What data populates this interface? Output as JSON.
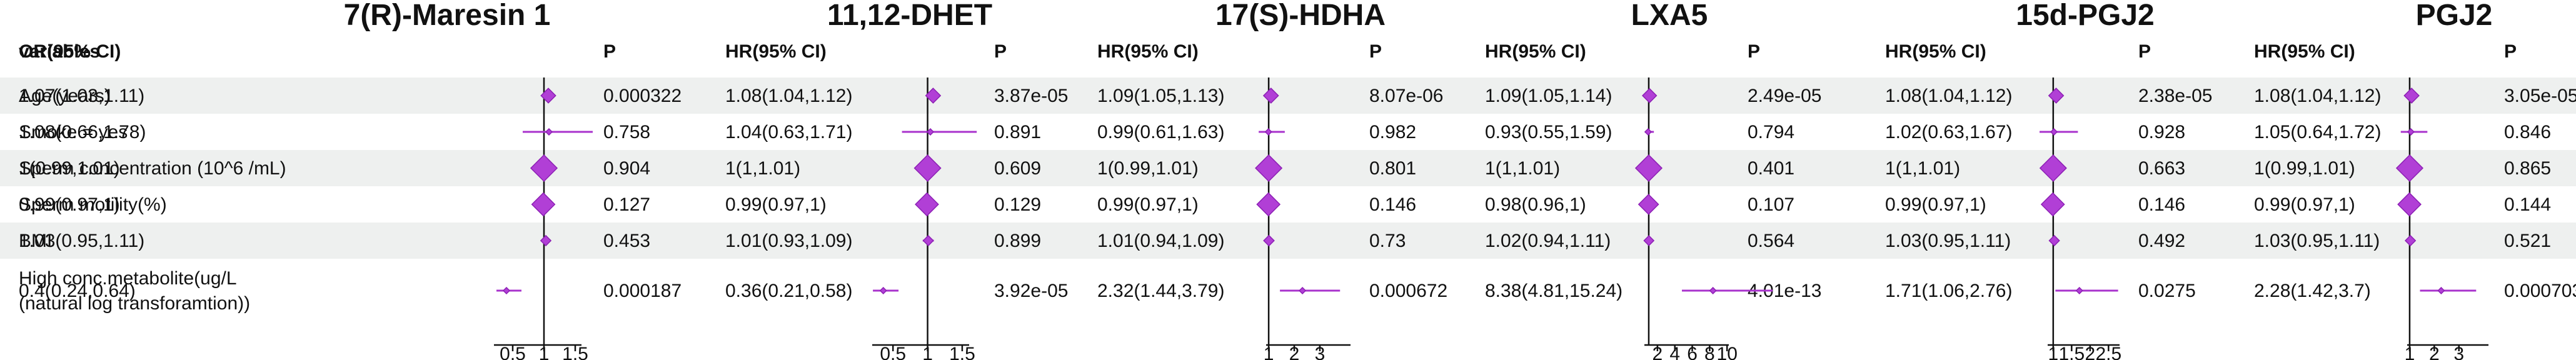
{
  "colors": {
    "marker": "#b13fd6",
    "marker_edge": "#8c1fb4",
    "ci_line": "#a832cc",
    "band": "#eef0ef",
    "axis": "#111111",
    "text": "#111111"
  },
  "table": {
    "variables_header": "variables",
    "variables": [
      [
        "Age(years)"
      ],
      [
        "Smoke = yes"
      ],
      [
        "Sperm concentration (10^6 /mL)"
      ],
      [
        "Sperm motility(%)"
      ],
      [
        "BMI"
      ],
      [
        "High conc.metabolite(ug/L",
        "(natural log transforamtion))"
      ]
    ]
  },
  "chart_data": [
    {
      "type": "forest",
      "title": "7(R)-Maresin 1",
      "estimate_header": "OR(95% CI)",
      "p_header": "P",
      "rows": [
        {
          "label": "1.07(1.03,1.11)",
          "est": 1.07,
          "lo": 1.03,
          "hi": 1.11,
          "p": "0.000322"
        },
        {
          "label": "1.08(0.66,1.78)",
          "est": 1.08,
          "lo": 0.66,
          "hi": 1.78,
          "p": "0.758"
        },
        {
          "label": "1(0.99,1.01)",
          "est": 1.0,
          "lo": 0.99,
          "hi": 1.01,
          "p": "0.904"
        },
        {
          "label": "0.99(0.97,1)",
          "est": 0.99,
          "lo": 0.97,
          "hi": 1.0,
          "p": "0.127"
        },
        {
          "label": "1.03(0.95,1.11)",
          "est": 1.03,
          "lo": 0.95,
          "hi": 1.11,
          "p": "0.453"
        },
        {
          "label": "0.4(0.24,0.64)",
          "est": 0.4,
          "lo": 0.24,
          "hi": 0.64,
          "p": "0.000187"
        }
      ],
      "ticks": [
        "0.5",
        "1",
        "1.5"
      ],
      "xlim": [
        0.2,
        1.6
      ],
      "ref": 1
    },
    {
      "type": "forest",
      "title": "11,12-DHET",
      "estimate_header": "HR(95% CI)",
      "p_header": "P",
      "rows": [
        {
          "label": "1.08(1.04,1.12)",
          "est": 1.08,
          "lo": 1.04,
          "hi": 1.12,
          "p": "3.87e-05"
        },
        {
          "label": "1.04(0.63,1.71)",
          "est": 1.04,
          "lo": 0.63,
          "hi": 1.71,
          "p": "0.891"
        },
        {
          "label": "1(1,1.01)",
          "est": 1.0,
          "lo": 1.0,
          "hi": 1.01,
          "p": "0.609"
        },
        {
          "label": "0.99(0.97,1)",
          "est": 0.99,
          "lo": 0.97,
          "hi": 1.0,
          "p": "0.129"
        },
        {
          "label": "1.01(0.93,1.09)",
          "est": 1.01,
          "lo": 0.93,
          "hi": 1.09,
          "p": "0.899"
        },
        {
          "label": "0.36(0.21,0.58)",
          "est": 0.36,
          "lo": 0.21,
          "hi": 0.58,
          "p": "3.92e-05"
        }
      ],
      "ticks": [
        "0.5",
        "1",
        "1.5"
      ],
      "xlim": [
        0.2,
        1.6
      ],
      "ref": 1
    },
    {
      "type": "forest",
      "title": "17(S)-HDHA",
      "estimate_header": "HR(95% CI)",
      "p_header": "P",
      "rows": [
        {
          "label": "1.09(1.05,1.13)",
          "est": 1.09,
          "lo": 1.05,
          "hi": 1.13,
          "p": "8.07e-06"
        },
        {
          "label": "0.99(0.61,1.63)",
          "est": 0.99,
          "lo": 0.61,
          "hi": 1.63,
          "p": "0.982"
        },
        {
          "label": "1(0.99,1.01)",
          "est": 1.0,
          "lo": 0.99,
          "hi": 1.01,
          "p": "0.801"
        },
        {
          "label": "0.99(0.97,1)",
          "est": 0.99,
          "lo": 0.97,
          "hi": 1.0,
          "p": "0.146"
        },
        {
          "label": "1.01(0.94,1.09)",
          "est": 1.01,
          "lo": 0.94,
          "hi": 1.09,
          "p": "0.73"
        },
        {
          "label": "2.32(1.44,3.79)",
          "est": 2.32,
          "lo": 1.44,
          "hi": 3.79,
          "p": "0.000672"
        }
      ],
      "ticks": [
        "1",
        "2",
        "3"
      ],
      "xlim": [
        0.9,
        4.2
      ],
      "ref": 1
    },
    {
      "type": "forest",
      "title": "LXA5",
      "estimate_header": "HR(95% CI)",
      "p_header": "P",
      "rows": [
        {
          "label": "1.09(1.05,1.14)",
          "est": 1.09,
          "lo": 1.05,
          "hi": 1.14,
          "p": "2.49e-05"
        },
        {
          "label": "0.93(0.55,1.59)",
          "est": 0.93,
          "lo": 0.55,
          "hi": 1.59,
          "p": "0.794"
        },
        {
          "label": "1(1,1.01)",
          "est": 1.0,
          "lo": 1.0,
          "hi": 1.01,
          "p": "0.401"
        },
        {
          "label": "0.98(0.96,1)",
          "est": 0.98,
          "lo": 0.96,
          "hi": 1.0,
          "p": "0.107"
        },
        {
          "label": "1.02(0.94,1.11)",
          "est": 1.02,
          "lo": 0.94,
          "hi": 1.11,
          "p": "0.564"
        },
        {
          "label": "8.38(4.81,15.24)",
          "est": 8.38,
          "lo": 4.81,
          "hi": 15.24,
          "p": "4.01e-13"
        }
      ],
      "ticks": [
        "2",
        "4",
        "6",
        "8",
        "10"
      ],
      "xlim": [
        0.5,
        10.2
      ],
      "ref": 1
    },
    {
      "type": "forest",
      "title": "15d-PGJ2",
      "estimate_header": "HR(95% CI)",
      "p_header": "P",
      "rows": [
        {
          "label": "1.08(1.04,1.12)",
          "est": 1.08,
          "lo": 1.04,
          "hi": 1.12,
          "p": "2.38e-05"
        },
        {
          "label": "1.02(0.63,1.67)",
          "est": 1.02,
          "lo": 0.63,
          "hi": 1.67,
          "p": "0.928"
        },
        {
          "label": "1(1,1.01)",
          "est": 1.0,
          "lo": 1.0,
          "hi": 1.01,
          "p": "0.663"
        },
        {
          "label": "0.99(0.97,1)",
          "est": 0.99,
          "lo": 0.97,
          "hi": 1.0,
          "p": "0.146"
        },
        {
          "label": "1.03(0.95,1.11)",
          "est": 1.03,
          "lo": 0.95,
          "hi": 1.11,
          "p": "0.492"
        },
        {
          "label": "1.71(1.06,2.76)",
          "est": 1.71,
          "lo": 1.06,
          "hi": 2.76,
          "p": "0.0275"
        }
      ],
      "ticks": [
        "1",
        "1.5",
        "2",
        "2.5"
      ],
      "xlim": [
        0.85,
        2.8
      ],
      "ref": 1
    },
    {
      "type": "forest",
      "title": "PGJ2",
      "estimate_header": "HR(95% CI)",
      "p_header": "P",
      "rows": [
        {
          "label": "1.08(1.04,1.12)",
          "est": 1.08,
          "lo": 1.04,
          "hi": 1.12,
          "p": "3.05e-05"
        },
        {
          "label": "1.05(0.64,1.72)",
          "est": 1.05,
          "lo": 0.64,
          "hi": 1.72,
          "p": "0.846"
        },
        {
          "label": "1(0.99,1.01)",
          "est": 1.0,
          "lo": 0.99,
          "hi": 1.01,
          "p": "0.865"
        },
        {
          "label": "0.99(0.97,1)",
          "est": 0.99,
          "lo": 0.97,
          "hi": 1.0,
          "p": "0.144"
        },
        {
          "label": "1.03(0.95,1.11)",
          "est": 1.03,
          "lo": 0.95,
          "hi": 1.11,
          "p": "0.521"
        },
        {
          "label": "2.28(1.42,3.7)",
          "est": 2.28,
          "lo": 1.42,
          "hi": 3.7,
          "p": "0.000703"
        }
      ],
      "ticks": [
        "1",
        "2",
        "3"
      ],
      "xlim": [
        0.9,
        4.2
      ],
      "ref": 1
    }
  ]
}
